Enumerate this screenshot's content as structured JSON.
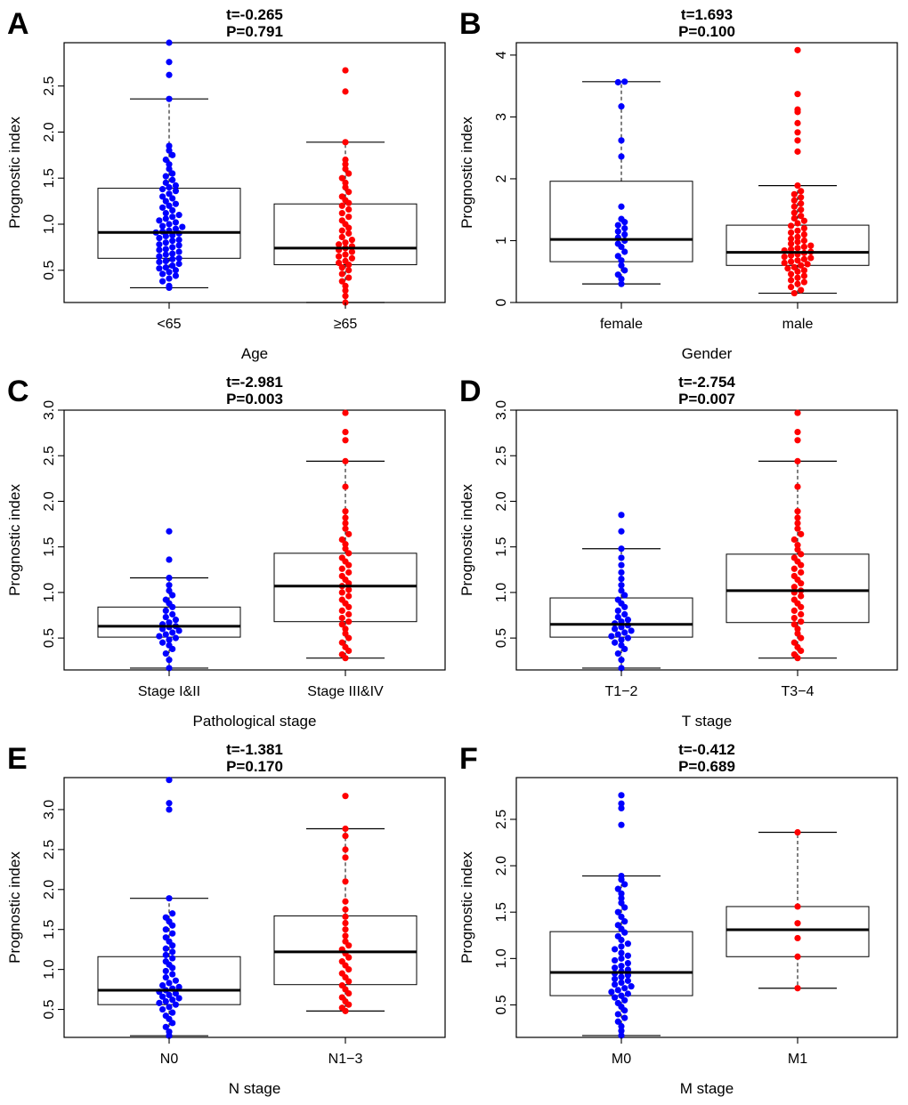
{
  "chart_data": [
    {
      "type": "boxplot",
      "panel": "A",
      "t_text": "t=-0.265",
      "p_text": "P=0.791",
      "ylabel": "Prognostic index",
      "xlabel": "Age",
      "ylim": [
        0.15,
        2.97
      ],
      "yticks": [
        "0.5",
        "1.0",
        "1.5",
        "2.0",
        "2.5"
      ],
      "groups": [
        {
          "label": "<65",
          "color": "#0000ff",
          "whisker_low": 0.31,
          "q1": 0.63,
          "median": 0.91,
          "q3": 1.39,
          "whisker_high": 2.36,
          "points": [
            0.31,
            0.33,
            0.38,
            0.41,
            0.44,
            0.46,
            0.48,
            0.5,
            0.52,
            0.53,
            0.55,
            0.57,
            0.59,
            0.6,
            0.62,
            0.63,
            0.65,
            0.67,
            0.68,
            0.7,
            0.72,
            0.73,
            0.75,
            0.77,
            0.78,
            0.8,
            0.82,
            0.83,
            0.85,
            0.87,
            0.88,
            0.9,
            0.91,
            0.92,
            0.93,
            0.95,
            0.97,
            0.98,
            1.0,
            1.02,
            1.04,
            1.06,
            1.08,
            1.1,
            1.12,
            1.15,
            1.18,
            1.2,
            1.22,
            1.25,
            1.28,
            1.3,
            1.33,
            1.36,
            1.38,
            1.4,
            1.42,
            1.45,
            1.48,
            1.52,
            1.55,
            1.6,
            1.65,
            1.7,
            1.75,
            1.8,
            1.85,
            2.36,
            2.62,
            2.76,
            2.97
          ]
        },
        {
          "label": "≥65",
          "color": "#ff0000",
          "whisker_low": 0.15,
          "q1": 0.56,
          "median": 0.74,
          "q3": 1.22,
          "whisker_high": 1.89,
          "points": [
            0.15,
            0.22,
            0.28,
            0.33,
            0.38,
            0.42,
            0.46,
            0.5,
            0.53,
            0.56,
            0.58,
            0.6,
            0.63,
            0.65,
            0.67,
            0.7,
            0.72,
            0.74,
            0.76,
            0.78,
            0.8,
            0.83,
            0.86,
            0.9,
            0.93,
            0.96,
            1.0,
            1.04,
            1.08,
            1.12,
            1.16,
            1.2,
            1.23,
            1.26,
            1.3,
            1.35,
            1.4,
            1.45,
            1.5,
            1.55,
            1.6,
            1.65,
            1.7,
            1.89,
            2.44,
            2.67
          ]
        }
      ]
    },
    {
      "type": "boxplot",
      "panel": "B",
      "t_text": "t=1.693",
      "p_text": "P=0.100",
      "ylabel": "Prognostic index",
      "xlabel": "Gender",
      "ylim": [
        0.0,
        4.2
      ],
      "yticks": [
        "0",
        "1",
        "2",
        "3",
        "4"
      ],
      "groups": [
        {
          "label": "female",
          "color": "#0000ff",
          "whisker_low": 0.3,
          "q1": 0.66,
          "median": 1.02,
          "q3": 1.96,
          "whisker_high": 3.57,
          "points": [
            0.3,
            0.38,
            0.45,
            0.52,
            0.6,
            0.68,
            0.75,
            0.82,
            0.9,
            0.95,
            1.0,
            1.05,
            1.1,
            1.15,
            1.2,
            1.25,
            1.3,
            1.35,
            1.55,
            2.36,
            2.62,
            3.17,
            3.56,
            3.57
          ]
        },
        {
          "label": "male",
          "color": "#ff0000",
          "whisker_low": 0.15,
          "q1": 0.6,
          "median": 0.81,
          "q3": 1.25,
          "whisker_high": 1.89,
          "points": [
            0.15,
            0.2,
            0.25,
            0.3,
            0.33,
            0.36,
            0.4,
            0.43,
            0.46,
            0.5,
            0.52,
            0.55,
            0.57,
            0.6,
            0.62,
            0.64,
            0.66,
            0.68,
            0.7,
            0.72,
            0.74,
            0.76,
            0.78,
            0.8,
            0.82,
            0.84,
            0.86,
            0.88,
            0.9,
            0.92,
            0.95,
            0.98,
            1.0,
            1.03,
            1.06,
            1.1,
            1.13,
            1.16,
            1.2,
            1.24,
            1.28,
            1.32,
            1.36,
            1.4,
            1.45,
            1.5,
            1.55,
            1.6,
            1.65,
            1.7,
            1.75,
            1.8,
            1.89,
            2.44,
            2.62,
            2.75,
            2.9,
            3.08,
            3.12,
            3.37,
            4.08
          ]
        }
      ]
    },
    {
      "type": "boxplot",
      "panel": "C",
      "t_text": "t=-2.981",
      "p_text": "P=0.003",
      "ylabel": "Prognostic index",
      "xlabel": "Pathological stage",
      "ylim": [
        0.15,
        3.0
      ],
      "yticks": [
        "0.5",
        "1.0",
        "1.5",
        "2.0",
        "2.5",
        "3.0"
      ],
      "groups": [
        {
          "label": "Stage I&II",
          "color": "#0000ff",
          "whisker_low": 0.17,
          "q1": 0.51,
          "median": 0.63,
          "q3": 0.84,
          "whisker_high": 1.16,
          "points": [
            0.17,
            0.26,
            0.33,
            0.38,
            0.42,
            0.45,
            0.48,
            0.5,
            0.52,
            0.54,
            0.56,
            0.58,
            0.6,
            0.62,
            0.63,
            0.65,
            0.67,
            0.7,
            0.73,
            0.76,
            0.8,
            0.84,
            0.88,
            0.92,
            0.97,
            1.02,
            1.08,
            1.16,
            1.36,
            1.67
          ]
        },
        {
          "label": "Stage III&IV",
          "color": "#ff0000",
          "whisker_low": 0.28,
          "q1": 0.68,
          "median": 1.07,
          "q3": 1.43,
          "whisker_high": 2.44,
          "points": [
            0.28,
            0.32,
            0.36,
            0.4,
            0.45,
            0.5,
            0.55,
            0.6,
            0.65,
            0.68,
            0.72,
            0.76,
            0.8,
            0.84,
            0.88,
            0.92,
            0.96,
            1.0,
            1.03,
            1.07,
            1.1,
            1.14,
            1.18,
            1.22,
            1.26,
            1.3,
            1.34,
            1.38,
            1.43,
            1.48,
            1.53,
            1.58,
            1.64,
            1.7,
            1.76,
            1.82,
            1.89,
            2.16,
            2.44,
            2.67,
            2.76,
            2.97
          ]
        }
      ]
    },
    {
      "type": "boxplot",
      "panel": "D",
      "t_text": "t=-2.754",
      "p_text": "P=0.007",
      "ylabel": "Prognostic index",
      "xlabel": "T stage",
      "ylim": [
        0.15,
        3.0
      ],
      "yticks": [
        "0.5",
        "1.0",
        "1.5",
        "2.0",
        "2.5",
        "3.0"
      ],
      "groups": [
        {
          "label": "T1−2",
          "color": "#0000ff",
          "whisker_low": 0.17,
          "q1": 0.51,
          "median": 0.65,
          "q3": 0.94,
          "whisker_high": 1.48,
          "points": [
            0.17,
            0.26,
            0.33,
            0.38,
            0.42,
            0.45,
            0.48,
            0.5,
            0.52,
            0.54,
            0.56,
            0.58,
            0.6,
            0.62,
            0.64,
            0.66,
            0.68,
            0.7,
            0.73,
            0.76,
            0.8,
            0.84,
            0.88,
            0.92,
            0.97,
            1.02,
            1.08,
            1.15,
            1.22,
            1.3,
            1.38,
            1.48,
            1.67,
            1.85
          ]
        },
        {
          "label": "T3−4",
          "color": "#ff0000",
          "whisker_low": 0.28,
          "q1": 0.67,
          "median": 1.02,
          "q3": 1.42,
          "whisker_high": 2.44,
          "points": [
            0.28,
            0.32,
            0.36,
            0.4,
            0.45,
            0.5,
            0.55,
            0.6,
            0.65,
            0.68,
            0.72,
            0.76,
            0.8,
            0.84,
            0.88,
            0.92,
            0.96,
            1.0,
            1.02,
            1.06,
            1.1,
            1.14,
            1.18,
            1.22,
            1.26,
            1.3,
            1.34,
            1.38,
            1.42,
            1.47,
            1.52,
            1.58,
            1.64,
            1.7,
            1.76,
            1.82,
            1.89,
            2.16,
            2.44,
            2.67,
            2.76,
            2.97
          ]
        }
      ]
    },
    {
      "type": "boxplot",
      "panel": "E",
      "t_text": "t=-1.381",
      "p_text": "P=0.170",
      "ylabel": "Prognostic index",
      "xlabel": "N stage",
      "ylim": [
        0.15,
        3.4
      ],
      "yticks": [
        "0.5",
        "1.0",
        "1.5",
        "2.0",
        "2.5",
        "3.0"
      ],
      "groups": [
        {
          "label": "N0",
          "color": "#0000ff",
          "whisker_low": 0.17,
          "q1": 0.56,
          "median": 0.74,
          "q3": 1.16,
          "whisker_high": 1.89,
          "points": [
            0.17,
            0.22,
            0.28,
            0.33,
            0.38,
            0.42,
            0.46,
            0.5,
            0.53,
            0.56,
            0.58,
            0.6,
            0.62,
            0.64,
            0.66,
            0.68,
            0.7,
            0.72,
            0.74,
            0.76,
            0.78,
            0.8,
            0.83,
            0.86,
            0.9,
            0.94,
            0.98,
            1.02,
            1.06,
            1.1,
            1.14,
            1.18,
            1.22,
            1.26,
            1.3,
            1.35,
            1.4,
            1.45,
            1.5,
            1.55,
            1.6,
            1.65,
            1.7,
            1.89,
            3.0,
            3.08,
            3.37
          ]
        },
        {
          "label": "N1−3",
          "color": "#ff0000",
          "whisker_low": 0.48,
          "q1": 0.81,
          "median": 1.22,
          "q3": 1.67,
          "whisker_high": 2.76,
          "points": [
            0.48,
            0.52,
            0.56,
            0.6,
            0.65,
            0.7,
            0.75,
            0.8,
            0.85,
            0.9,
            0.95,
            1.0,
            1.05,
            1.1,
            1.15,
            1.2,
            1.25,
            1.3,
            1.35,
            1.42,
            1.5,
            1.58,
            1.66,
            1.75,
            1.85,
            2.1,
            2.4,
            2.5,
            2.67,
            2.76,
            3.17
          ]
        }
      ]
    },
    {
      "type": "boxplot",
      "panel": "F",
      "t_text": "t=-0.412",
      "p_text": "P=0.689",
      "ylabel": "Prognostic index",
      "xlabel": "M stage",
      "ylim": [
        0.15,
        2.95
      ],
      "yticks": [
        "0.5",
        "1.0",
        "1.5",
        "2.0",
        "2.5"
      ],
      "groups": [
        {
          "label": "M0",
          "color": "#0000ff",
          "whisker_low": 0.17,
          "q1": 0.6,
          "median": 0.85,
          "q3": 1.29,
          "whisker_high": 1.89,
          "points": [
            0.17,
            0.22,
            0.27,
            0.32,
            0.36,
            0.4,
            0.44,
            0.48,
            0.52,
            0.55,
            0.58,
            0.6,
            0.62,
            0.64,
            0.66,
            0.68,
            0.7,
            0.72,
            0.74,
            0.76,
            0.78,
            0.8,
            0.82,
            0.84,
            0.86,
            0.88,
            0.9,
            0.92,
            0.95,
            0.98,
            1.0,
            1.03,
            1.06,
            1.1,
            1.13,
            1.16,
            1.2,
            1.24,
            1.28,
            1.32,
            1.36,
            1.4,
            1.45,
            1.5,
            1.55,
            1.6,
            1.65,
            1.7,
            1.75,
            1.8,
            1.85,
            1.89,
            2.44,
            2.62,
            2.67,
            2.76
          ]
        },
        {
          "label": "M1",
          "color": "#ff0000",
          "whisker_low": 0.68,
          "q1": 1.02,
          "median": 1.31,
          "q3": 1.56,
          "whisker_high": 2.36,
          "points": [
            0.68,
            1.02,
            1.22,
            1.38,
            1.56,
            2.36
          ]
        }
      ]
    }
  ]
}
